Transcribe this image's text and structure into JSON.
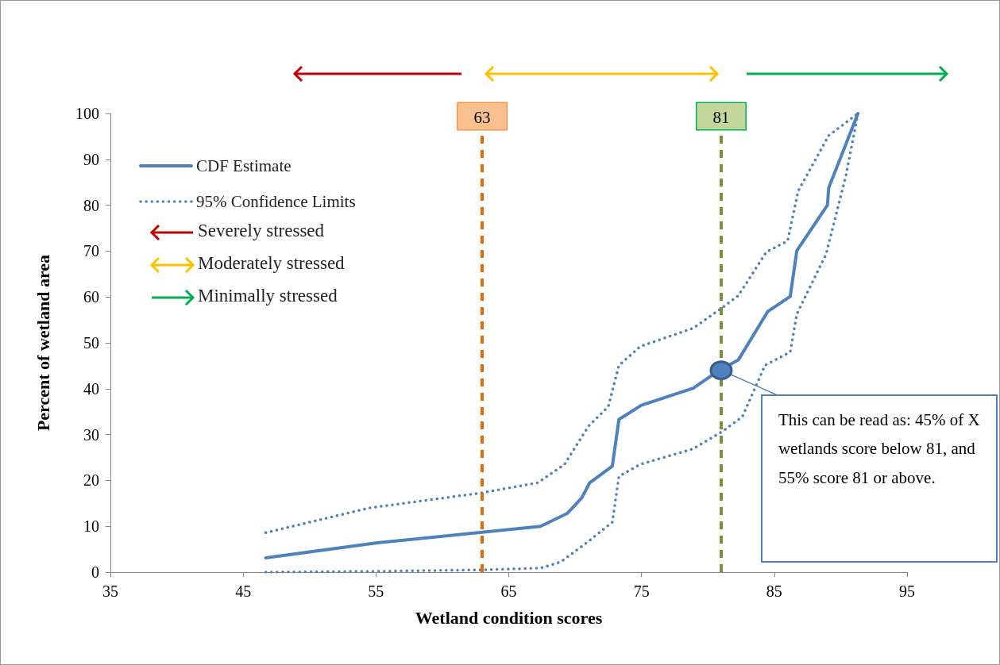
{
  "chart_data": {
    "type": "line",
    "xlabel": "Wetland condition scores",
    "ylabel": "Percent of wetland area",
    "xlim": [
      35,
      95
    ],
    "xticks": [
      35,
      45,
      55,
      65,
      75,
      85,
      95
    ],
    "ylim": [
      0,
      100
    ],
    "yticks": [
      0,
      10,
      20,
      30,
      40,
      50,
      60,
      70,
      80,
      90,
      100
    ],
    "grid": false,
    "legend": "top left",
    "marker": "none",
    "series": [
      {
        "name": "CDF Estimate",
        "color": "#4f81bd",
        "line_style": "solid",
        "x": [
          46.7,
          55.1,
          67.4,
          69.4,
          70.5,
          71.1,
          72.8,
          73.3,
          75.0,
          78.9,
          80.8,
          82.3,
          84.5,
          86.2,
          86.7,
          89.0,
          89.1,
          91.3
        ],
        "values": [
          3.1,
          6.4,
          10.0,
          12.8,
          16.2,
          19.5,
          23.1,
          33.3,
          36.4,
          40.1,
          43.9,
          46.3,
          56.8,
          60.1,
          70.1,
          80.0,
          83.8,
          100
        ]
      },
      {
        "name": "95% Confidence Limits",
        "color": "#4f81bd",
        "line_style": "dotted",
        "x": [
          46.7,
          54.5,
          63.0,
          67.2,
          69.2,
          71.0,
          72.5,
          73.3,
          74.9,
          78.9,
          81.1,
          82.3,
          84.4,
          86.0,
          86.8,
          89.1,
          91.3
        ],
        "values": [
          8.6,
          14.0,
          17.3,
          19.5,
          23.5,
          31.8,
          36.1,
          45.1,
          49.2,
          53.2,
          57.7,
          60.3,
          69.8,
          72.2,
          83.1,
          95.2,
          100
        ]
      },
      {
        "color": "#4f81bd",
        "line_style": "dotted",
        "x": [
          46.7,
          55.1,
          63.0,
          67.4,
          68.9,
          71.0,
          72.8,
          73.3,
          74.9,
          78.9,
          81.1,
          82.6,
          84.3,
          86.2,
          86.7,
          88.9,
          90.4,
          91.3
        ],
        "values": [
          0,
          0.2,
          0.5,
          0.9,
          2.2,
          6.7,
          10.9,
          20.9,
          23.5,
          26.9,
          30.7,
          33.9,
          45.1,
          48.0,
          56.3,
          69.3,
          86.5,
          100
        ]
      }
    ],
    "ref_lines": [
      {
        "axis": "x",
        "value": 63,
        "label": "63",
        "color": "#e36c09",
        "line_style": "dashed"
      },
      {
        "axis": "x",
        "value": 81,
        "label": "81",
        "color": "#77933c",
        "line_style": "dashed"
      }
    ],
    "annotations": [
      "Severely stressed",
      "Moderately stressed",
      "Minimally stressed",
      {
        "text": "This can be read as: 45% of X wetlands score below 81, and 55% score 81 or above.",
        "x": 81,
        "y": 44
      }
    ]
  }
}
